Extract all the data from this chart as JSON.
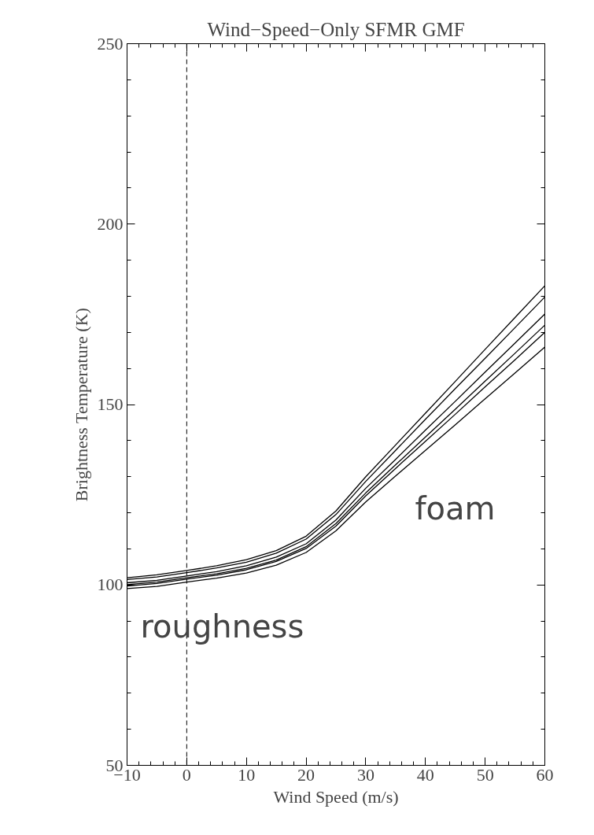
{
  "chart_data": {
    "type": "line",
    "title": "Wind−Speed−Only SFMR GMF",
    "xlabel": "Wind Speed (m/s)",
    "ylabel": "Brightness Temperature (K)",
    "x": [
      -10,
      -5,
      0,
      5,
      10,
      15,
      20,
      25,
      30,
      35,
      40,
      45,
      50,
      55,
      60
    ],
    "series": [
      {
        "color": "#000000",
        "values": [
          102,
          102.8,
          104,
          105.3,
          107,
          109.5,
          113.5,
          120.5,
          130,
          138.8,
          147.6,
          156.4,
          165.3,
          174.1,
          182.9
        ]
      },
      {
        "color": "#000000",
        "values": [
          101.5,
          102.2,
          103.4,
          104.7,
          106.3,
          108.8,
          112.7,
          119.5,
          128.7,
          137.3,
          145.9,
          154.4,
          162.8,
          171.3,
          179.8
        ]
      },
      {
        "color": "#000000",
        "values": [
          100.6,
          101.3,
          102.5,
          103.7,
          105.3,
          107.7,
          111.4,
          118.0,
          126.8,
          134.8,
          142.9,
          150.9,
          159.0,
          167.0,
          175.1
        ]
      },
      {
        "color": "#000000",
        "values": [
          100.1,
          100.8,
          102.0,
          103.1,
          104.6,
          106.9,
          110.6,
          117.0,
          125.5,
          133.3,
          141.0,
          148.7,
          156.5,
          164.2,
          172.0
        ]
      },
      {
        "color": "#000000",
        "values": [
          99.7,
          100.4,
          101.6,
          102.7,
          104.2,
          106.5,
          110.1,
          116.3,
          124.7,
          132.3,
          139.8,
          147.3,
          154.9,
          162.4,
          170.0
        ]
      },
      {
        "color": "#000000",
        "values": [
          99,
          99.6,
          100.8,
          101.9,
          103.3,
          105.5,
          109,
          115,
          123,
          130.2,
          137.3,
          144.4,
          151.6,
          158.7,
          165.9
        ]
      }
    ],
    "xlim": [
      -10,
      60
    ],
    "ylim": [
      50,
      250
    ],
    "xticks": [
      -10,
      0,
      10,
      20,
      30,
      40,
      50,
      60
    ],
    "yticks": [
      50,
      100,
      150,
      200,
      250
    ],
    "grid": false,
    "marker": "none",
    "line_style": "solid",
    "ref_lines": [
      {
        "axis": "x",
        "value": 0,
        "line_style": "dashed"
      }
    ],
    "annotations": [
      "roughness",
      "foam"
    ]
  }
}
